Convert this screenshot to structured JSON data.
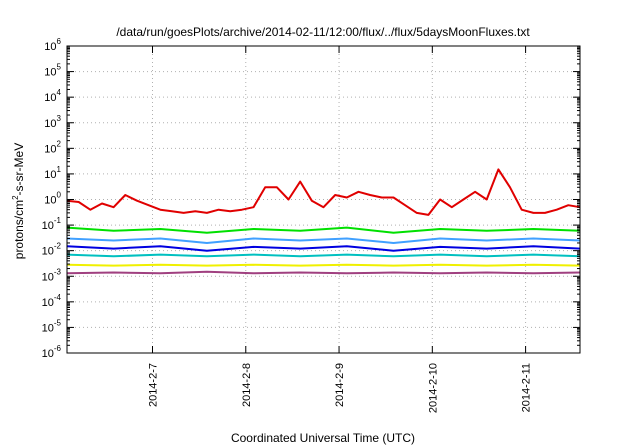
{
  "chart_data": {
    "type": "line",
    "title": "/data/run/goesPlots/archive/2014-02-11/12:00/flux/../flux/5daysMoonFluxes.txt",
    "xlabel": "Coordinated Universal Time (UTC)",
    "ylabel": "protons/cm²-s-sr-MeV",
    "y_scale": "log",
    "ylim": [
      1e-06,
      1000000.0
    ],
    "xlim": [
      "2014-02-06T02:00",
      "2014-02-11T14:00"
    ],
    "grid": true,
    "x_tick_labels": [
      "2014-2-7",
      "2014-2-8",
      "2014-2-9",
      "2014-2-10",
      "2014-2-11"
    ],
    "x_tick_values": [
      "2014-02-07T00:00",
      "2014-02-08T00:00",
      "2014-02-09T00:00",
      "2014-02-10T00:00",
      "2014-02-11T00:00"
    ],
    "y_ticks": [
      {
        "base": "10",
        "exp": "-6",
        "value": 1e-06
      },
      {
        "base": "10",
        "exp": "-5",
        "value": 1e-05
      },
      {
        "base": "10",
        "exp": "-4",
        "value": 0.0001
      },
      {
        "base": "10",
        "exp": "-3",
        "value": 0.001
      },
      {
        "base": "10",
        "exp": "-2",
        "value": 0.01
      },
      {
        "base": "10",
        "exp": "-1",
        "value": 0.1
      },
      {
        "base": "10",
        "exp": "0",
        "value": 1
      },
      {
        "base": "10",
        "exp": "1",
        "value": 10
      },
      {
        "base": "10",
        "exp": "2",
        "value": 100
      },
      {
        "base": "10",
        "exp": "3",
        "value": 1000
      },
      {
        "base": "10",
        "exp": "4",
        "value": 10000
      },
      {
        "base": "10",
        "exp": "5",
        "value": 100000
      },
      {
        "base": "10",
        "exp": "6",
        "value": 1000000
      }
    ],
    "series": [
      {
        "color": "#e00000",
        "x": [
          "2014-02-06T02:00",
          "2014-02-06T05:00",
          "2014-02-06T08:00",
          "2014-02-06T11:00",
          "2014-02-06T14:00",
          "2014-02-06T17:00",
          "2014-02-06T20:00",
          "2014-02-06T23:00",
          "2014-02-07T02:00",
          "2014-02-07T05:00",
          "2014-02-07T08:00",
          "2014-02-07T11:00",
          "2014-02-07T14:00",
          "2014-02-07T17:00",
          "2014-02-07T20:00",
          "2014-02-07T23:00",
          "2014-02-08T02:00",
          "2014-02-08T05:00",
          "2014-02-08T08:00",
          "2014-02-08T11:00",
          "2014-02-08T14:00",
          "2014-02-08T17:00",
          "2014-02-08T20:00",
          "2014-02-08T23:00",
          "2014-02-09T02:00",
          "2014-02-09T05:00",
          "2014-02-09T08:00",
          "2014-02-09T11:00",
          "2014-02-09T14:00",
          "2014-02-09T17:00",
          "2014-02-09T20:00",
          "2014-02-09T23:00",
          "2014-02-10T02:00",
          "2014-02-10T05:00",
          "2014-02-10T08:00",
          "2014-02-10T11:00",
          "2014-02-10T14:00",
          "2014-02-10T17:00",
          "2014-02-10T20:00",
          "2014-02-10T23:00",
          "2014-02-11T02:00",
          "2014-02-11T05:00",
          "2014-02-11T08:00",
          "2014-02-11T11:00",
          "2014-02-11T14:00"
        ],
        "values": [
          0.9,
          0.8,
          0.4,
          0.7,
          0.5,
          1.5,
          0.9,
          0.6,
          0.4,
          0.35,
          0.3,
          0.35,
          0.3,
          0.4,
          0.35,
          0.4,
          0.5,
          3,
          3,
          1,
          5,
          0.9,
          0.5,
          1.5,
          1.2,
          2,
          1.5,
          1.2,
          1.2,
          0.6,
          0.3,
          0.25,
          1,
          0.5,
          1,
          2,
          1,
          15,
          3,
          0.4,
          0.3,
          0.3,
          0.4,
          0.6,
          0.5
        ]
      },
      {
        "color": "#00e000",
        "x": [
          "2014-02-06T02:00",
          "2014-02-06T14:00",
          "2014-02-07T02:00",
          "2014-02-07T14:00",
          "2014-02-08T02:00",
          "2014-02-08T14:00",
          "2014-02-09T02:00",
          "2014-02-09T14:00",
          "2014-02-10T02:00",
          "2014-02-10T14:00",
          "2014-02-11T02:00",
          "2014-02-11T14:00"
        ],
        "values": [
          0.08,
          0.06,
          0.07,
          0.05,
          0.07,
          0.06,
          0.08,
          0.05,
          0.07,
          0.06,
          0.07,
          0.06
        ]
      },
      {
        "color": "#40a0ff",
        "x": [
          "2014-02-06T02:00",
          "2014-02-06T14:00",
          "2014-02-07T02:00",
          "2014-02-07T14:00",
          "2014-02-08T02:00",
          "2014-02-08T14:00",
          "2014-02-09T02:00",
          "2014-02-09T14:00",
          "2014-02-10T02:00",
          "2014-02-10T14:00",
          "2014-02-11T02:00",
          "2014-02-11T14:00"
        ],
        "values": [
          0.03,
          0.025,
          0.03,
          0.02,
          0.03,
          0.025,
          0.03,
          0.02,
          0.03,
          0.025,
          0.03,
          0.025
        ]
      },
      {
        "color": "#0000e0",
        "x": [
          "2014-02-06T02:00",
          "2014-02-06T14:00",
          "2014-02-07T02:00",
          "2014-02-07T14:00",
          "2014-02-08T02:00",
          "2014-02-08T14:00",
          "2014-02-09T02:00",
          "2014-02-09T14:00",
          "2014-02-10T02:00",
          "2014-02-10T14:00",
          "2014-02-11T02:00",
          "2014-02-11T14:00"
        ],
        "values": [
          0.015,
          0.012,
          0.015,
          0.01,
          0.014,
          0.012,
          0.015,
          0.01,
          0.014,
          0.012,
          0.015,
          0.012
        ]
      },
      {
        "color": "#00c0c0",
        "x": [
          "2014-02-06T02:00",
          "2014-02-06T14:00",
          "2014-02-07T02:00",
          "2014-02-07T14:00",
          "2014-02-08T02:00",
          "2014-02-08T14:00",
          "2014-02-09T02:00",
          "2014-02-09T14:00",
          "2014-02-10T02:00",
          "2014-02-10T14:00",
          "2014-02-11T02:00",
          "2014-02-11T14:00"
        ],
        "values": [
          0.007,
          0.006,
          0.007,
          0.006,
          0.007,
          0.006,
          0.007,
          0.006,
          0.007,
          0.006,
          0.007,
          0.006
        ]
      },
      {
        "color": "#f0f000",
        "x": [
          "2014-02-06T02:00",
          "2014-02-06T14:00",
          "2014-02-07T02:00",
          "2014-02-07T14:00",
          "2014-02-08T02:00",
          "2014-02-08T14:00",
          "2014-02-09T02:00",
          "2014-02-09T14:00",
          "2014-02-10T02:00",
          "2014-02-10T14:00",
          "2014-02-11T02:00",
          "2014-02-11T14:00"
        ],
        "values": [
          0.0028,
          0.0026,
          0.0028,
          0.0026,
          0.0028,
          0.0026,
          0.0028,
          0.0026,
          0.0028,
          0.0026,
          0.0028,
          0.0026
        ]
      },
      {
        "color": "#a04080",
        "x": [
          "2014-02-06T02:00",
          "2014-02-06T14:00",
          "2014-02-07T02:00",
          "2014-02-07T14:00",
          "2014-02-08T02:00",
          "2014-02-08T14:00",
          "2014-02-09T02:00",
          "2014-02-09T14:00",
          "2014-02-10T02:00",
          "2014-02-10T14:00",
          "2014-02-11T02:00",
          "2014-02-11T14:00"
        ],
        "values": [
          0.0013,
          0.0014,
          0.0013,
          0.0015,
          0.0013,
          0.0014,
          0.0013,
          0.0014,
          0.0013,
          0.0014,
          0.0013,
          0.0014
        ]
      }
    ]
  }
}
